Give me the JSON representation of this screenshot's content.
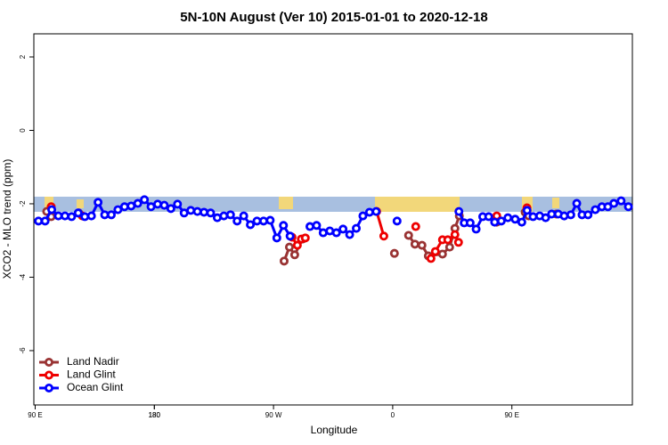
{
  "chart_data": {
    "type": "line",
    "title": "5N-10N August (Ver 10)   2015-01-01 to 2020-12-18",
    "xlabel": "Longitude",
    "ylabel": "XCO2 - MLO trend (ppm)",
    "xlim": [
      89,
      541
    ],
    "ylim": [
      -7.48,
      2.63
    ],
    "xticks": [
      {
        "value": 90,
        "label": "90 E"
      },
      180,
      {
        "value": 270,
        "label": "90 W"
      },
      {
        "value": 360,
        "label": "0"
      },
      {
        "value": 450,
        "label": "90 E"
      },
      180
    ],
    "yticks": [
      -6,
      -4,
      -2,
      0,
      2
    ],
    "legend": "bottom-left",
    "series": [
      {
        "name": "Land Nadir",
        "color": "#993333",
        "x": [
          98.7,
          102.1,
          null,
          122.9,
          null,
          278,
          282,
          286,
          292,
          null,
          361.3,
          null,
          372,
          376.8,
          382.1,
          386.9,
          397.6,
          403,
          407,
          410.3,
          null,
          438.6,
          null,
          460,
          462.7,
          null,
          483.6
        ],
        "values": [
          -2.21,
          -2.35,
          null,
          -2.25,
          null,
          -3.56,
          -3.18,
          -3.39,
          -2.96,
          null,
          -3.35,
          null,
          -2.86,
          -3.1,
          -3.13,
          -3.42,
          -3.37,
          -3.18,
          -2.67,
          -2.33,
          null,
          -2.5,
          null,
          -2.23,
          -2.33,
          null,
          -2.28
        ]
      },
      {
        "name": "Land Glint",
        "color": "#ee0000",
        "x": [
          102.1,
          null,
          125.6,
          null,
          284,
          288,
          291,
          294,
          null,
          347.9,
          353.3,
          null,
          377.4,
          null,
          388.9,
          392.2,
          397.6,
          401.6,
          407,
          409.7,
          null,
          438.6,
          null,
          461.4
        ],
        "values": [
          -2.08,
          null,
          -2.33,
          null,
          -2.91,
          -3.13,
          -2.96,
          -2.93,
          null,
          -2.21,
          -2.88,
          null,
          -2.62,
          null,
          -3.49,
          -3.3,
          -2.98,
          -2.98,
          -2.84,
          -3.05,
          null,
          -2.33,
          null,
          -2.11
        ]
      },
      {
        "name": "Ocean Glint",
        "color": "#0000ff",
        "x": [
          92.5,
          97.5,
          102.5,
          107.5,
          112.5,
          117.5,
          122.5,
          127.5,
          132.5,
          137.5,
          142.5,
          147.5,
          152.5,
          157.5,
          162.5,
          167.5,
          172.5,
          177.5,
          182.5,
          187.5,
          192.5,
          197.5,
          202.5,
          207.5,
          212.5,
          217.5,
          222.5,
          227.5,
          232.5,
          237.5,
          242.5,
          247.5,
          252.5,
          257.5,
          262.5,
          267.5,
          272.5,
          277.5,
          282.5,
          null,
          297.5,
          302.5,
          307.5,
          312.5,
          317.5,
          322.5,
          327.5,
          332.5,
          337.5,
          342.5,
          347.5,
          null,
          363.3,
          null,
          410,
          414,
          418.5,
          423,
          428,
          432.5,
          437,
          442,
          447,
          452.5,
          457.5,
          461.5,
          466,
          471,
          475.5,
          480,
          485,
          489.5,
          494.5,
          499,
          503,
          507.5,
          513,
          518,
          522.5,
          527,
          532.5,
          538
        ],
        "values": [
          -2.47,
          -2.47,
          -2.16,
          -2.33,
          -2.33,
          -2.35,
          -2.25,
          -2.35,
          -2.33,
          -1.96,
          -2.3,
          -2.3,
          -2.16,
          -2.08,
          -2.06,
          -1.99,
          -1.89,
          -2.08,
          -2.01,
          -2.04,
          -2.13,
          -2.01,
          -2.25,
          -2.18,
          -2.21,
          -2.23,
          -2.25,
          -2.38,
          -2.33,
          -2.3,
          -2.47,
          -2.33,
          -2.57,
          -2.47,
          -2.47,
          -2.45,
          -2.93,
          -2.59,
          -2.88,
          null,
          -2.62,
          -2.59,
          -2.79,
          -2.74,
          -2.79,
          -2.69,
          -2.84,
          -2.67,
          -2.33,
          -2.23,
          -2.21,
          null,
          -2.47,
          null,
          -2.21,
          -2.52,
          -2.52,
          -2.69,
          -2.35,
          -2.35,
          -2.5,
          -2.47,
          -2.38,
          -2.42,
          -2.5,
          -2.18,
          -2.35,
          -2.33,
          -2.38,
          -2.28,
          -2.28,
          -2.33,
          -2.3,
          -1.99,
          -2.3,
          -2.3,
          -2.16,
          -2.08,
          -2.08,
          -1.99,
          -1.92,
          -2.08
        ]
      }
    ]
  }
}
